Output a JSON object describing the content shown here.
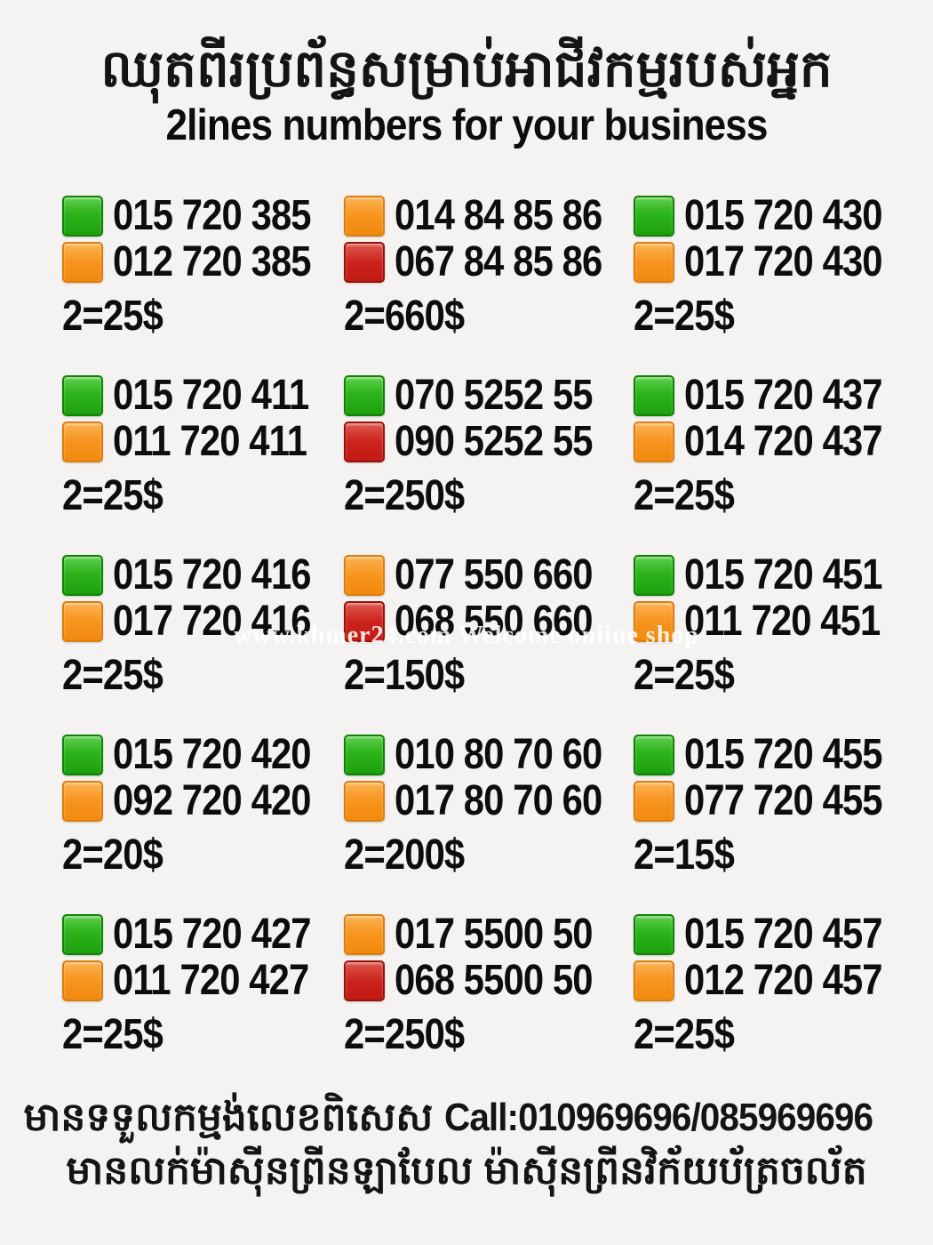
{
  "header": {
    "title_khmer": "ឈុតពីរប្រព័ន្ធសម្រាប់អាជីវកម្មរបស់អ្នក",
    "subtitle": "2lines numbers for your business"
  },
  "watermark": "www.khmer24.com Welcome online shop",
  "colors": {
    "green": "#2cb31a",
    "orange": "#f7941d",
    "red": "#cc241c",
    "background": "#f5f3f2",
    "text": "#0d0d0d"
  },
  "cards": [
    {
      "lines": [
        {
          "color": "green",
          "number": "015 720 385"
        },
        {
          "color": "orange",
          "number": "012 720 385"
        }
      ],
      "price": "2=25$"
    },
    {
      "lines": [
        {
          "color": "orange",
          "number": "014 84 85 86"
        },
        {
          "color": "red",
          "number": "067 84 85 86"
        }
      ],
      "price": "2=660$"
    },
    {
      "lines": [
        {
          "color": "green",
          "number": "015 720 430"
        },
        {
          "color": "orange",
          "number": "017 720 430"
        }
      ],
      "price": "2=25$"
    },
    {
      "lines": [
        {
          "color": "green",
          "number": "015 720 411"
        },
        {
          "color": "orange",
          "number": "011 720 411"
        }
      ],
      "price": "2=25$"
    },
    {
      "lines": [
        {
          "color": "green",
          "number": "070 5252 55"
        },
        {
          "color": "red",
          "number": "090 5252 55"
        }
      ],
      "price": "2=250$"
    },
    {
      "lines": [
        {
          "color": "green",
          "number": "015 720 437"
        },
        {
          "color": "orange",
          "number": "014 720 437"
        }
      ],
      "price": "2=25$"
    },
    {
      "lines": [
        {
          "color": "green",
          "number": "015 720 416"
        },
        {
          "color": "orange",
          "number": "017 720 416"
        }
      ],
      "price": "2=25$"
    },
    {
      "lines": [
        {
          "color": "orange",
          "number": "077 550 660"
        },
        {
          "color": "red",
          "number": "068 550 660"
        }
      ],
      "price": "2=150$"
    },
    {
      "lines": [
        {
          "color": "green",
          "number": "015 720 451"
        },
        {
          "color": "orange",
          "number": "011 720 451"
        }
      ],
      "price": "2=25$"
    },
    {
      "lines": [
        {
          "color": "green",
          "number": "015 720 420"
        },
        {
          "color": "orange",
          "number": "092 720 420"
        }
      ],
      "price": "2=20$"
    },
    {
      "lines": [
        {
          "color": "green",
          "number": "010 80 70 60"
        },
        {
          "color": "orange",
          "number": "017 80 70 60"
        }
      ],
      "price": "2=200$"
    },
    {
      "lines": [
        {
          "color": "green",
          "number": "015 720 455"
        },
        {
          "color": "orange",
          "number": "077 720 455"
        }
      ],
      "price": "2=15$"
    },
    {
      "lines": [
        {
          "color": "green",
          "number": "015 720 427"
        },
        {
          "color": "orange",
          "number": "011 720 427"
        }
      ],
      "price": "2=25$"
    },
    {
      "lines": [
        {
          "color": "orange",
          "number": "017 5500 50"
        },
        {
          "color": "red",
          "number": "068 5500 50"
        }
      ],
      "price": "2=250$"
    },
    {
      "lines": [
        {
          "color": "green",
          "number": "015 720 457"
        },
        {
          "color": "orange",
          "number": "012 720 457"
        }
      ],
      "price": "2=25$"
    }
  ],
  "footer": {
    "line1_khmer": "មានទទួលកម្មង់លេខពិសេស",
    "line1_call": "Call:010969696/085969696",
    "line2_khmer": "មានលក់ម៉ាស៊ីនព្រីនឡាបែល ម៉ាស៊ីនព្រីនវិក័យប័ត្រចល័ត"
  }
}
